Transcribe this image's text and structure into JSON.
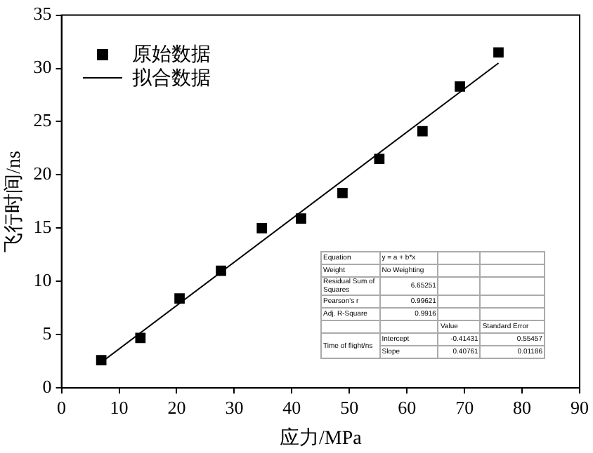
{
  "chart_data": {
    "type": "scatter",
    "xlabel": "应力/MPa",
    "ylabel": "飞行时间/ns",
    "series": [
      {
        "name": "原始数据",
        "color": "#000000",
        "marker": "square",
        "x": [
          6.9,
          13.7,
          20.5,
          27.7,
          34.8,
          41.6,
          48.8,
          55.2,
          62.7,
          69.2,
          75.9
        ],
        "values": [
          2.6,
          4.7,
          8.4,
          11.0,
          15.0,
          15.9,
          18.3,
          21.5,
          24.1,
          28.3,
          31.5
        ]
      },
      {
        "name": "拟合数据",
        "type": "line",
        "color": "#000000",
        "marker": "none",
        "line_style": "solid",
        "x": [
          6.9,
          75.9
        ],
        "values": [
          2.4,
          30.5
        ]
      }
    ],
    "xlim": [
      0,
      90
    ],
    "xticks": [
      0,
      10,
      20,
      30,
      40,
      50,
      60,
      70,
      80,
      90
    ],
    "ylim": [
      0,
      35
    ],
    "yticks": [
      0,
      5,
      10,
      15,
      20,
      25,
      30,
      35
    ],
    "grid": false,
    "legend": "top left",
    "annotations": [
      "Equation",
      "y = a + b*x",
      "Weight",
      "No Weighting",
      "Residual Sum of Squares",
      "6.65251",
      "Pearson's r",
      "0.99621",
      "Adj. R-Square",
      "0.9916",
      "Value",
      "Standard Error",
      "Time of flight/ns",
      "Intercept",
      "-0.41431",
      "0.55457",
      "Slope",
      "0.40761",
      "0.01186"
    ]
  }
}
